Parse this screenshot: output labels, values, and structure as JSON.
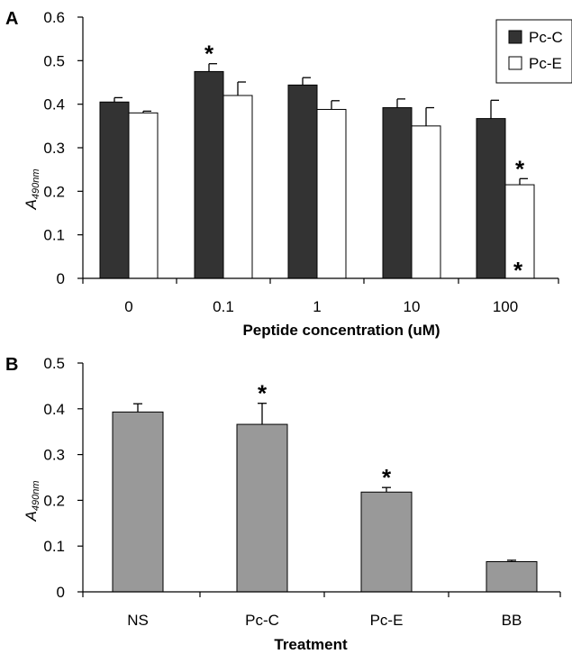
{
  "chart_data": [
    {
      "panel": "A",
      "type": "bar",
      "xlabel": "Peptide concentration (uM)",
      "ylabel_main": "A",
      "ylabel_sub": "490nm",
      "ylim": [
        0,
        0.6
      ],
      "yticks": [
        "0",
        "0.1",
        "0.2",
        "0.3",
        "0.4",
        "0.5",
        "0.6"
      ],
      "categories": [
        "0",
        "0.1",
        "1",
        "10",
        "100"
      ],
      "legend_position": "top-right",
      "series": [
        {
          "name": "Pc-C",
          "color": "#333333",
          "values": [
            0.405,
            0.475,
            0.444,
            0.392,
            0.367
          ],
          "errors": [
            0.01,
            0.018,
            0.017,
            0.02,
            0.042
          ],
          "significant": [
            false,
            true,
            false,
            false,
            false
          ]
        },
        {
          "name": "Pc-E",
          "color": "#ffffff",
          "values": [
            0.38,
            0.42,
            0.388,
            0.35,
            0.215
          ],
          "errors": [
            0.004,
            0.031,
            0.02,
            0.042,
            0.014
          ],
          "significant": [
            false,
            false,
            false,
            false,
            true
          ]
        }
      ],
      "annotations": [
        "*"
      ]
    },
    {
      "panel": "B",
      "type": "bar",
      "xlabel": "Treatment",
      "ylabel_main": "A",
      "ylabel_sub": "490nm",
      "ylim": [
        0,
        0.5
      ],
      "yticks": [
        "0",
        "0.1",
        "0.2",
        "0.3",
        "0.4",
        "0.5"
      ],
      "categories": [
        "NS",
        "Pc-C",
        "Pc-E",
        "BB"
      ],
      "series": [
        {
          "color": "#999999",
          "values": [
            0.393,
            0.366,
            0.218,
            0.066
          ],
          "errors": [
            0.018,
            0.046,
            0.01,
            0.003
          ],
          "significant": [
            false,
            true,
            true,
            false
          ]
        }
      ]
    }
  ]
}
